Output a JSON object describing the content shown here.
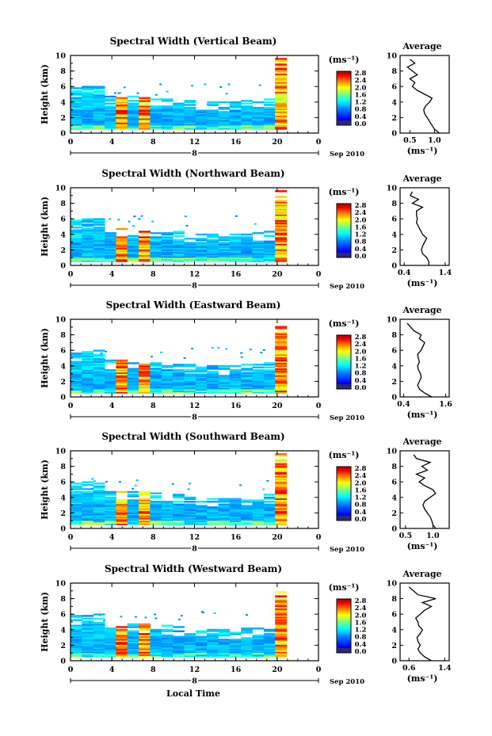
{
  "xaxis": {
    "title": "Local Time",
    "ticks": [
      "0",
      "4",
      "8",
      "12",
      "16",
      "20",
      "0"
    ],
    "date_label": "8",
    "date_suffix": "Sep 2010"
  },
  "yaxis": {
    "label": "Height (km)",
    "ticks": [
      "0",
      "2",
      "4",
      "6",
      "8",
      "10"
    ]
  },
  "colorbar": {
    "unit": "(ms⁻¹)",
    "ticks": [
      "0.0",
      "0.4",
      "0.8",
      "1.2",
      "1.6",
      "2.0",
      "2.4",
      "2.8"
    ]
  },
  "profile_header": "Average",
  "profile_xlabel": "(ms⁻¹)",
  "colors": {
    "lowest_band": "#2b2b6b",
    "scale": [
      "#00007f",
      "#0000ff",
      "#007fff",
      "#00ffff",
      "#7fff7f",
      "#ffff00",
      "#ff7f00",
      "#ff0000",
      "#7f0000"
    ]
  },
  "chart_data": [
    {
      "type": "heatmap",
      "title": "Spectral Width (Vertical Beam)",
      "xlim": [
        0,
        24
      ],
      "ylim": [
        0,
        10
      ],
      "profile": {
        "type": "line",
        "title": "Average",
        "xticks": [
          "0.5",
          "1.0"
        ],
        "xlim": [
          0.3,
          1.3
        ],
        "heights": [
          0,
          0.5,
          1,
          1.5,
          2,
          2.5,
          3,
          3.5,
          4,
          4.5,
          5,
          5.5,
          6,
          6.5,
          7,
          7.5,
          8,
          8.5,
          9,
          9.5
        ],
        "values": [
          1.1,
          1.0,
          0.95,
          0.9,
          0.85,
          0.8,
          0.78,
          0.82,
          0.9,
          0.95,
          0.8,
          0.65,
          0.55,
          0.6,
          0.5,
          0.65,
          0.55,
          0.45,
          0.6,
          0.5
        ]
      }
    },
    {
      "type": "heatmap",
      "title": "Spectral Width (Northward Beam)",
      "xlim": [
        0,
        24
      ],
      "ylim": [
        0,
        10
      ],
      "profile": {
        "type": "line",
        "title": "Average",
        "xticks": [
          "0.4",
          "1.4"
        ],
        "xlim": [
          0.3,
          1.5
        ],
        "heights": [
          0,
          0.5,
          1,
          1.5,
          2,
          2.5,
          3,
          3.5,
          4,
          4.5,
          5,
          5.5,
          6,
          6.5,
          7,
          7.5,
          8,
          8.5,
          9,
          9.5
        ],
        "values": [
          1.0,
          1.0,
          0.95,
          0.85,
          0.82,
          0.85,
          0.9,
          0.95,
          0.85,
          0.8,
          0.75,
          0.7,
          0.72,
          0.7,
          0.7,
          0.85,
          0.6,
          0.75,
          0.55,
          0.6
        ]
      }
    },
    {
      "type": "heatmap",
      "title": "Spectral Width (Eastward Beam)",
      "xlim": [
        0,
        24
      ],
      "ylim": [
        0,
        10
      ],
      "profile": {
        "type": "line",
        "title": "Average",
        "xticks": [
          "0.4",
          "1.6"
        ],
        "xlim": [
          0.3,
          1.7
        ],
        "heights": [
          0,
          0.5,
          1,
          1.5,
          2,
          2.5,
          3,
          3.5,
          4,
          4.5,
          5,
          5.5,
          6,
          6.5,
          7,
          7.5,
          8,
          8.5,
          9,
          9.5
        ],
        "values": [
          1.2,
          1.0,
          0.85,
          0.8,
          0.85,
          0.9,
          0.88,
          0.82,
          0.8,
          0.85,
          0.82,
          0.8,
          0.9,
          0.95,
          1.0,
          0.85,
          0.9,
          0.7,
          0.6,
          0.5
        ]
      }
    },
    {
      "type": "heatmap",
      "title": "Spectral Width (Southward Beam)",
      "xlim": [
        0,
        24
      ],
      "ylim": [
        0,
        10
      ],
      "profile": {
        "type": "line",
        "title": "Average",
        "xticks": [
          "0.5",
          "1.0"
        ],
        "xlim": [
          0.4,
          1.3
        ],
        "heights": [
          0,
          0.5,
          1,
          1.5,
          2,
          2.5,
          3,
          3.5,
          4,
          4.5,
          5,
          5.5,
          6,
          6.5,
          7,
          7.5,
          8,
          8.5,
          9,
          9.5
        ],
        "values": [
          1.05,
          1.0,
          0.98,
          0.95,
          0.9,
          0.85,
          0.82,
          0.85,
          0.95,
          1.05,
          1.0,
          0.85,
          0.75,
          0.85,
          0.7,
          0.9,
          0.8,
          0.95,
          0.7,
          0.65
        ]
      }
    },
    {
      "type": "heatmap",
      "title": "Spectral Width (Westward Beam)",
      "xlim": [
        0,
        24
      ],
      "ylim": [
        0,
        10
      ],
      "profile": {
        "type": "line",
        "title": "Average",
        "xticks": [
          "0.6",
          "1.4"
        ],
        "xlim": [
          0.4,
          1.5
        ],
        "heights": [
          0,
          0.5,
          1,
          1.5,
          2,
          2.5,
          3,
          3.5,
          4,
          4.5,
          5,
          5.5,
          6,
          6.5,
          7,
          7.5,
          8,
          8.5,
          9,
          9.5
        ],
        "values": [
          1.1,
          0.95,
          0.85,
          0.8,
          0.85,
          0.8,
          0.78,
          0.85,
          0.9,
          0.82,
          0.8,
          0.75,
          0.85,
          0.95,
          1.1,
          0.9,
          1.2,
          0.8,
          0.7,
          0.6
        ]
      }
    }
  ]
}
